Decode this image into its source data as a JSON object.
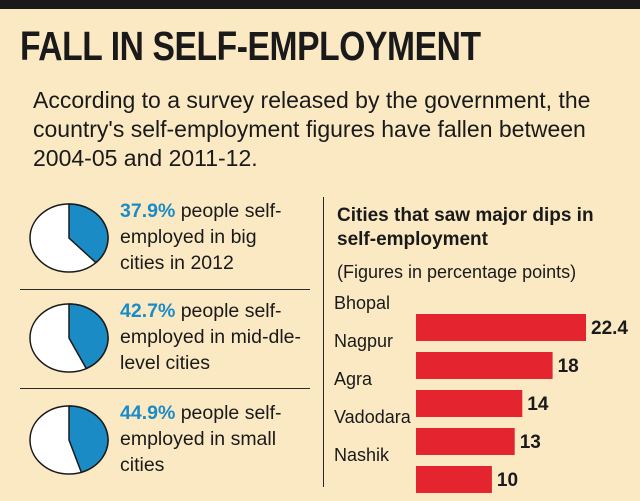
{
  "headline": "FALL IN SELF-EMPLOYMENT",
  "intro": "According to a survey released by the government, the country's self-employment figures have fallen between 2004-05 and 2011-12.",
  "stats": [
    {
      "pct": "37.9%",
      "text": " people self-employed in big cities in 2012",
      "value": 37.9
    },
    {
      "pct": "42.7%",
      "text": " people self-employed in mid-dle-level cities",
      "value": 42.7
    },
    {
      "pct": "44.9%",
      "text": " people self-employed in small cities",
      "value": 44.9
    }
  ],
  "colors": {
    "pie_fill": "#1b8bc6",
    "bar": "#e4242e",
    "background": "#fbe9c4"
  },
  "chart_data": {
    "type": "bar",
    "orientation": "horizontal",
    "title": "Cities that saw major dips in self-employment",
    "subtitle": "(Figures in percentage points)",
    "categories": [
      "Bhopal",
      "Nagpur",
      "Agra",
      "Vadodara",
      "Nashik"
    ],
    "values": [
      22.4,
      18,
      14,
      13,
      10
    ],
    "value_labels": [
      "22.4",
      "18",
      "14",
      "13",
      "10"
    ],
    "xlim": [
      0,
      22.4
    ],
    "grid": false,
    "legend": "none"
  }
}
